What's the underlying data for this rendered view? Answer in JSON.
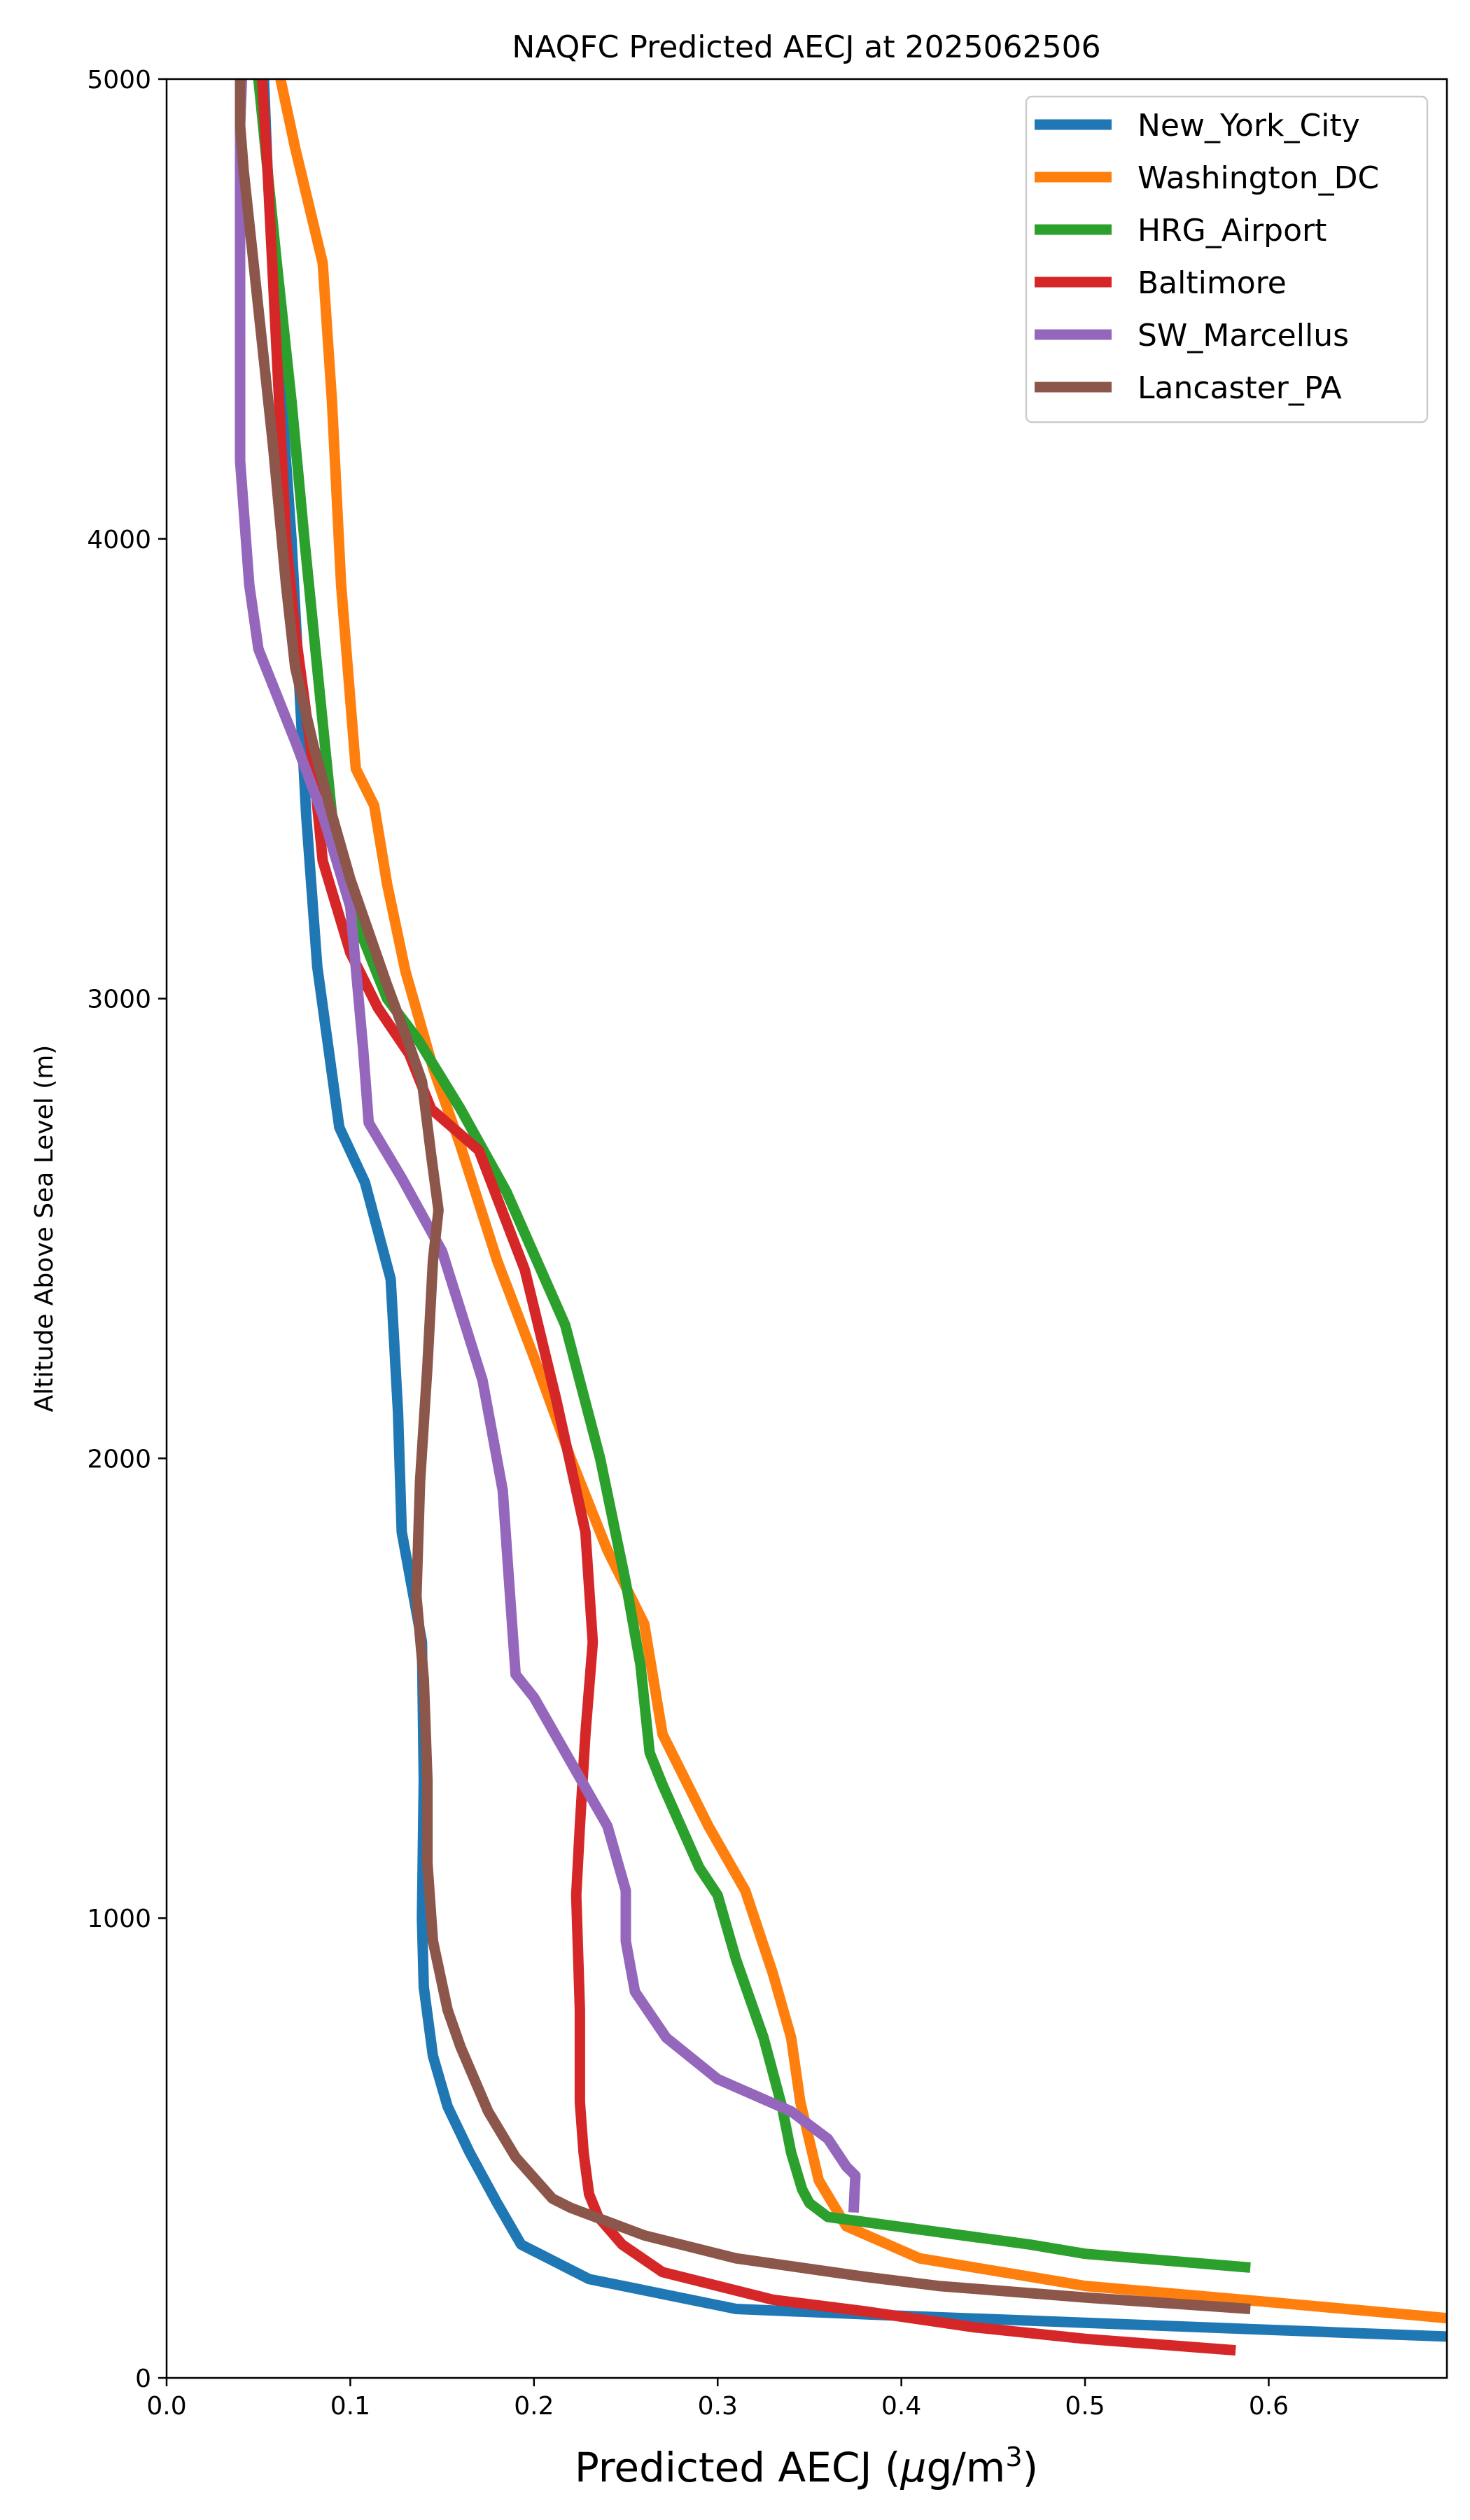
{
  "chart_data": {
    "type": "line",
    "title": "NAQFC Predicted AECJ at 2025062506",
    "xlabel_main": "Predicted AECJ (",
    "xlabel_mu": "μ",
    "xlabel_unit": "g/m",
    "xlabel_sup": "3",
    "xlabel_close": ")",
    "ylabel": "Altitude Above Sea Level (m)",
    "xlim": [
      0,
      0.697
    ],
    "ylim": [
      0,
      5000
    ],
    "xticks": [
      "0.0",
      "0.1",
      "0.2",
      "0.3",
      "0.4",
      "0.5",
      "0.6"
    ],
    "xtick_values": [
      0,
      0.1,
      0.2,
      0.3,
      0.4,
      0.5,
      0.6
    ],
    "yticks": [
      "0",
      "1000",
      "2000",
      "3000",
      "4000",
      "5000"
    ],
    "ytick_values": [
      0,
      1000,
      2000,
      3000,
      4000,
      5000
    ],
    "grid": false,
    "legend_position": "top-right",
    "series": [
      {
        "name": "New_York_City",
        "color": "#1f77b4",
        "points": [
          [
            0.697,
            90
          ],
          [
            0.63,
            100
          ],
          [
            0.5,
            120
          ],
          [
            0.4,
            135
          ],
          [
            0.31,
            150
          ],
          [
            0.23,
            215
          ],
          [
            0.193,
            290
          ],
          [
            0.18,
            380
          ],
          [
            0.165,
            490
          ],
          [
            0.153,
            590
          ],
          [
            0.145,
            700
          ],
          [
            0.14,
            850
          ],
          [
            0.139,
            1000
          ],
          [
            0.14,
            1300
          ],
          [
            0.139,
            1600
          ],
          [
            0.128,
            1840
          ],
          [
            0.126,
            2100
          ],
          [
            0.122,
            2390
          ],
          [
            0.108,
            2600
          ],
          [
            0.094,
            2720
          ],
          [
            0.082,
            3070
          ],
          [
            0.076,
            3400
          ],
          [
            0.072,
            3700
          ],
          [
            0.068,
            4000
          ],
          [
            0.061,
            4400
          ],
          [
            0.055,
            4800
          ],
          [
            0.053,
            5000
          ]
        ]
      },
      {
        "name": "Washington_DC",
        "color": "#ff7f0e",
        "points": [
          [
            0.697,
            130
          ],
          [
            0.6,
            165
          ],
          [
            0.5,
            200
          ],
          [
            0.41,
            260
          ],
          [
            0.37,
            330
          ],
          [
            0.355,
            430
          ],
          [
            0.345,
            600
          ],
          [
            0.34,
            740
          ],
          [
            0.33,
            880
          ],
          [
            0.315,
            1060
          ],
          [
            0.295,
            1200
          ],
          [
            0.27,
            1400
          ],
          [
            0.26,
            1640
          ],
          [
            0.24,
            1800
          ],
          [
            0.22,
            2000
          ],
          [
            0.2,
            2220
          ],
          [
            0.18,
            2430
          ],
          [
            0.16,
            2680
          ],
          [
            0.145,
            2850
          ],
          [
            0.13,
            3060
          ],
          [
            0.12,
            3250
          ],
          [
            0.113,
            3420
          ],
          [
            0.103,
            3500
          ],
          [
            0.095,
            3900
          ],
          [
            0.09,
            4300
          ],
          [
            0.085,
            4600
          ],
          [
            0.07,
            4850
          ],
          [
            0.062,
            5000
          ]
        ]
      },
      {
        "name": "HRG_Airport",
        "color": "#2ca02c",
        "points": [
          [
            0.59,
            240
          ],
          [
            0.5,
            270
          ],
          [
            0.47,
            290
          ],
          [
            0.36,
            350
          ],
          [
            0.35,
            380
          ],
          [
            0.346,
            410
          ],
          [
            0.34,
            490
          ],
          [
            0.335,
            590
          ],
          [
            0.325,
            740
          ],
          [
            0.31,
            910
          ],
          [
            0.3,
            1050
          ],
          [
            0.29,
            1110
          ],
          [
            0.28,
            1200
          ],
          [
            0.27,
            1290
          ],
          [
            0.263,
            1360
          ],
          [
            0.258,
            1550
          ],
          [
            0.25,
            1730
          ],
          [
            0.236,
            2000
          ],
          [
            0.217,
            2290
          ],
          [
            0.185,
            2580
          ],
          [
            0.16,
            2760
          ],
          [
            0.137,
            2910
          ],
          [
            0.12,
            3000
          ],
          [
            0.1,
            3200
          ],
          [
            0.09,
            3400
          ],
          [
            0.085,
            3600
          ],
          [
            0.075,
            4000
          ],
          [
            0.068,
            4300
          ],
          [
            0.06,
            4600
          ],
          [
            0.05,
            5000
          ]
        ]
      },
      {
        "name": "Baltimore",
        "color": "#d62728",
        "points": [
          [
            0.582,
            60
          ],
          [
            0.5,
            85
          ],
          [
            0.44,
            110
          ],
          [
            0.38,
            145
          ],
          [
            0.33,
            170
          ],
          [
            0.27,
            230
          ],
          [
            0.248,
            290
          ],
          [
            0.235,
            350
          ],
          [
            0.23,
            400
          ],
          [
            0.227,
            490
          ],
          [
            0.225,
            600
          ],
          [
            0.225,
            800
          ],
          [
            0.223,
            1050
          ],
          [
            0.225,
            1200
          ],
          [
            0.228,
            1400
          ],
          [
            0.232,
            1600
          ],
          [
            0.228,
            1840
          ],
          [
            0.212,
            2130
          ],
          [
            0.195,
            2410
          ],
          [
            0.17,
            2670
          ],
          [
            0.144,
            2760
          ],
          [
            0.132,
            2880
          ],
          [
            0.115,
            2980
          ],
          [
            0.1,
            3100
          ],
          [
            0.085,
            3300
          ],
          [
            0.08,
            3500
          ],
          [
            0.07,
            3800
          ],
          [
            0.065,
            4000
          ],
          [
            0.06,
            4400
          ],
          [
            0.055,
            4800
          ],
          [
            0.052,
            5000
          ]
        ]
      },
      {
        "name": "SW_Marcellus",
        "color": "#9467bd",
        "points": [
          [
            0.374,
            360
          ],
          [
            0.375,
            440
          ],
          [
            0.37,
            460
          ],
          [
            0.36,
            520
          ],
          [
            0.34,
            580
          ],
          [
            0.3,
            650
          ],
          [
            0.272,
            740
          ],
          [
            0.255,
            840
          ],
          [
            0.25,
            950
          ],
          [
            0.25,
            1060
          ],
          [
            0.24,
            1200
          ],
          [
            0.22,
            1340
          ],
          [
            0.2,
            1480
          ],
          [
            0.19,
            1530
          ],
          [
            0.187,
            1700
          ],
          [
            0.183,
            1930
          ],
          [
            0.172,
            2170
          ],
          [
            0.15,
            2450
          ],
          [
            0.128,
            2610
          ],
          [
            0.11,
            2730
          ],
          [
            0.107,
            2890
          ],
          [
            0.1,
            3200
          ],
          [
            0.085,
            3400
          ],
          [
            0.07,
            3560
          ],
          [
            0.05,
            3760
          ],
          [
            0.045,
            3900
          ],
          [
            0.04,
            4170
          ],
          [
            0.04,
            4650
          ],
          [
            0.04,
            4900
          ],
          [
            0.041,
            5000
          ]
        ]
      },
      {
        "name": "Lancaster_PA",
        "color": "#8c564b",
        "points": [
          [
            0.59,
            150
          ],
          [
            0.5,
            175
          ],
          [
            0.42,
            200
          ],
          [
            0.38,
            220
          ],
          [
            0.31,
            260
          ],
          [
            0.26,
            310
          ],
          [
            0.22,
            370
          ],
          [
            0.21,
            390
          ],
          [
            0.19,
            480
          ],
          [
            0.175,
            580
          ],
          [
            0.16,
            720
          ],
          [
            0.153,
            800
          ],
          [
            0.145,
            950
          ],
          [
            0.142,
            1120
          ],
          [
            0.142,
            1300
          ],
          [
            0.14,
            1520
          ],
          [
            0.136,
            1700
          ],
          [
            0.138,
            1950
          ],
          [
            0.142,
            2200
          ],
          [
            0.145,
            2430
          ],
          [
            0.148,
            2540
          ],
          [
            0.144,
            2660
          ],
          [
            0.139,
            2820
          ],
          [
            0.132,
            2900
          ],
          [
            0.12,
            3030
          ],
          [
            0.1,
            3260
          ],
          [
            0.09,
            3400
          ],
          [
            0.08,
            3550
          ],
          [
            0.07,
            3720
          ],
          [
            0.065,
            3900
          ],
          [
            0.058,
            4200
          ],
          [
            0.05,
            4500
          ],
          [
            0.042,
            4800
          ],
          [
            0.04,
            4900
          ],
          [
            0.04,
            5000
          ]
        ]
      }
    ]
  }
}
